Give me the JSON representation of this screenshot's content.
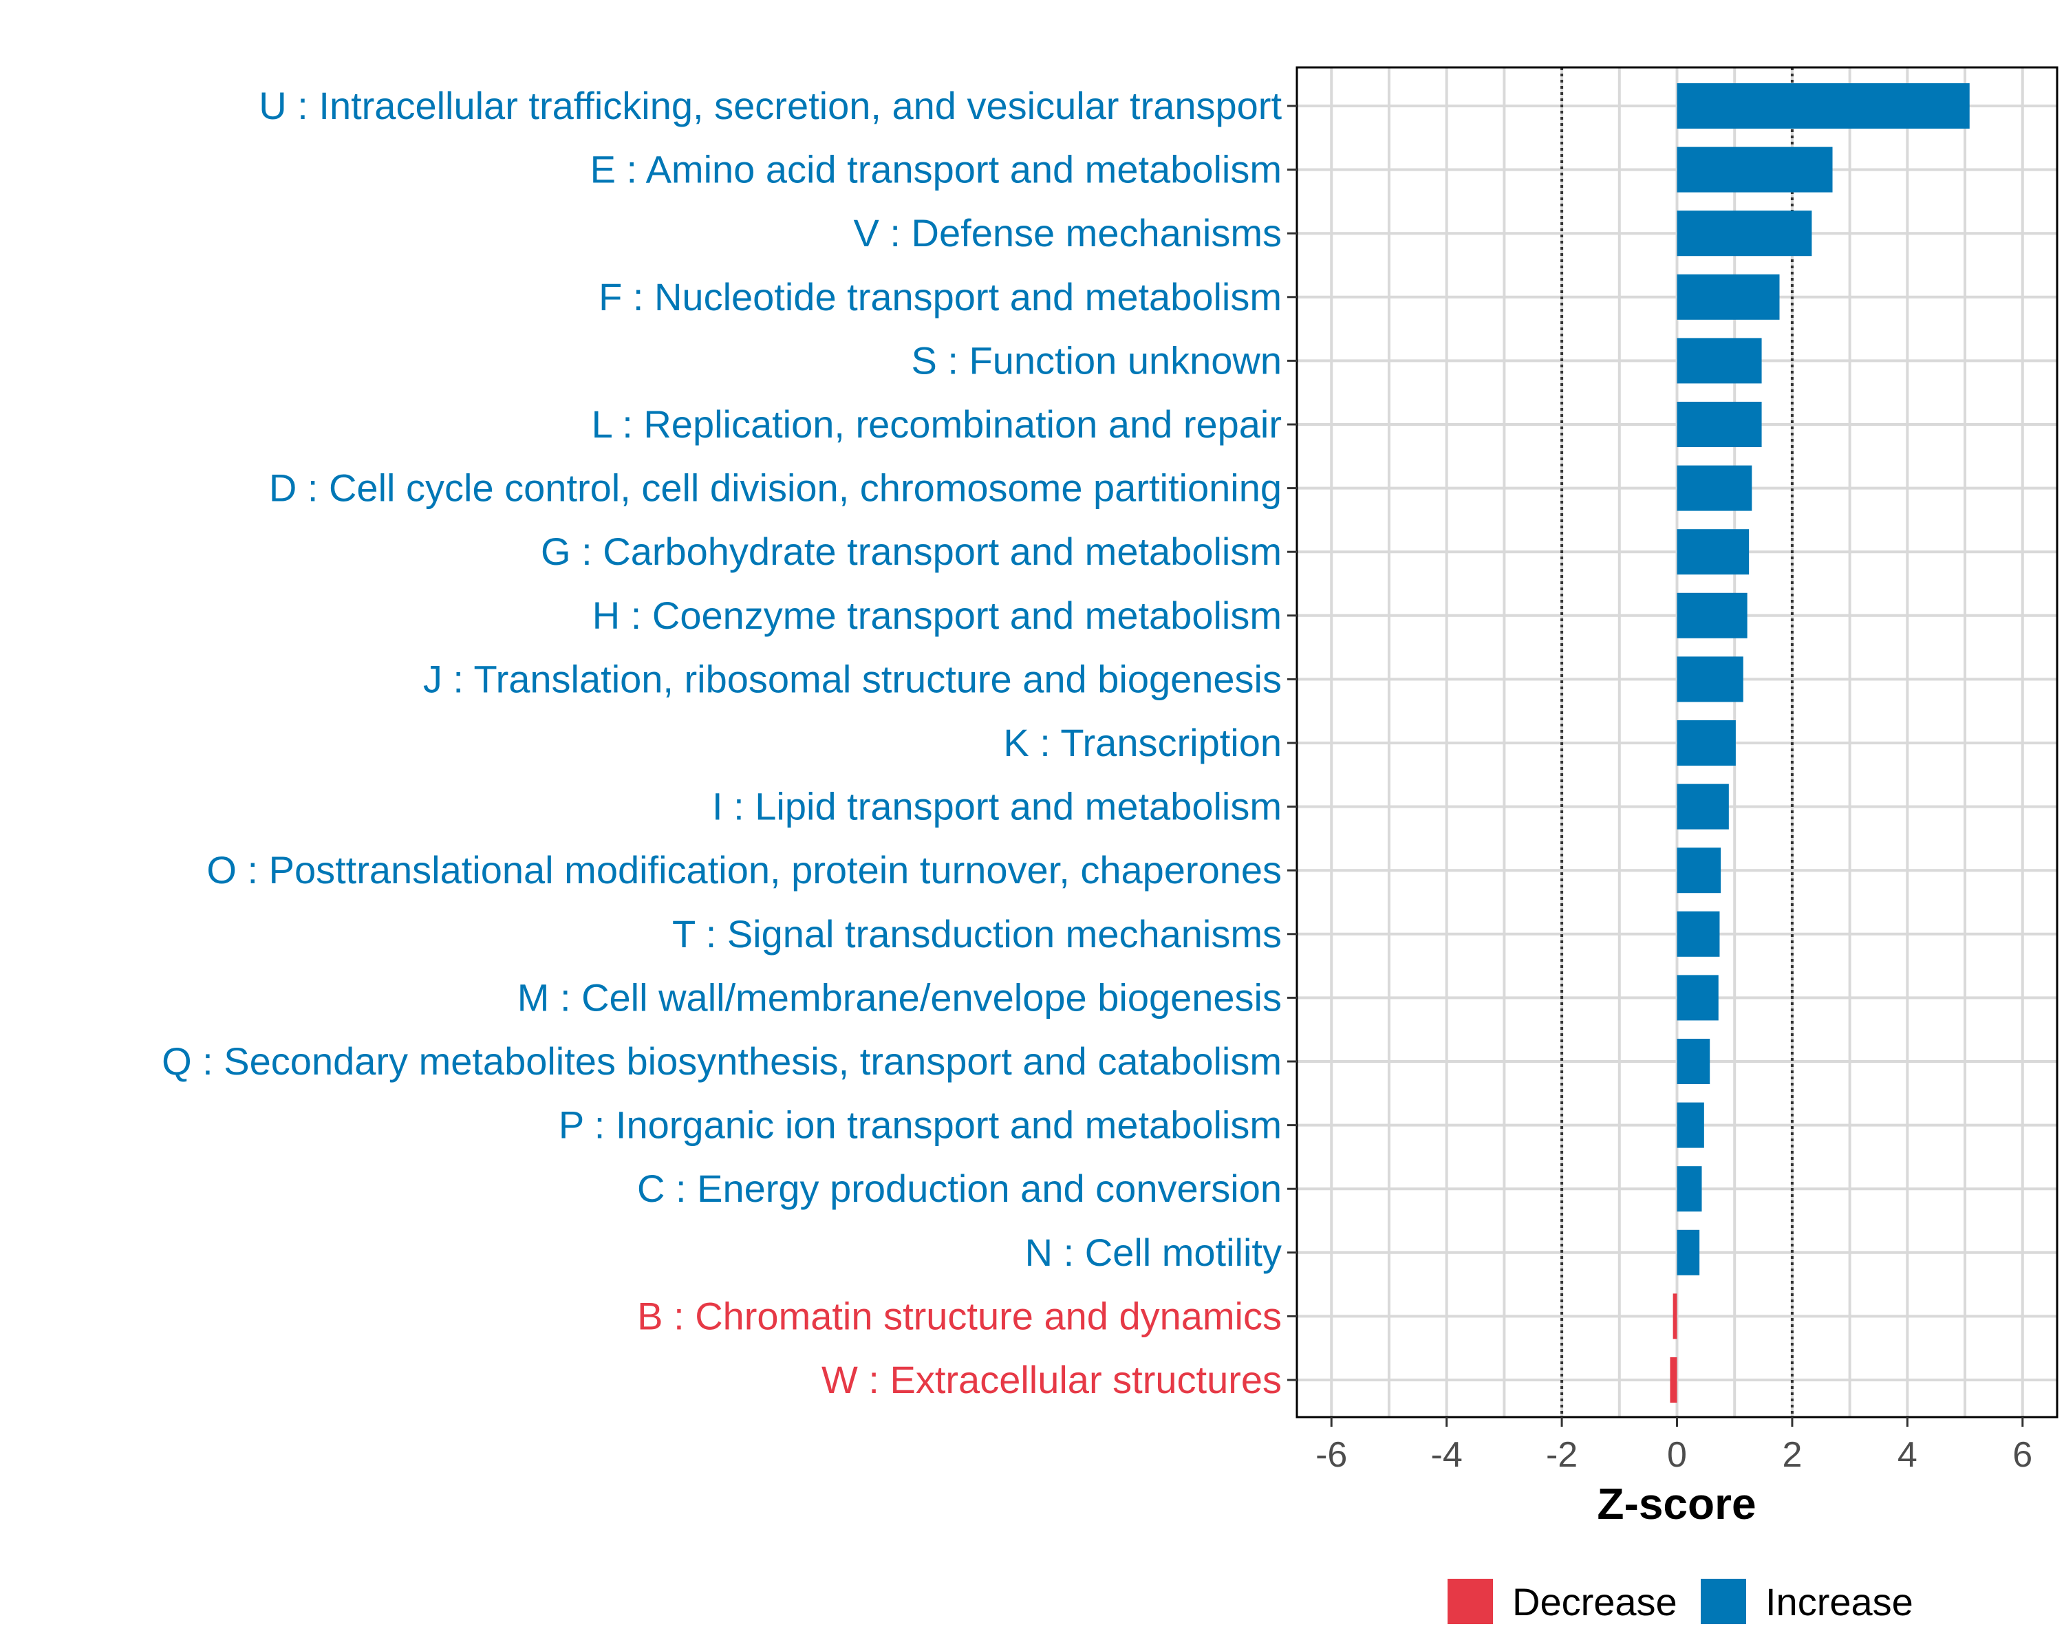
{
  "chart_data": {
    "type": "bar",
    "orientation": "horizontal",
    "title": "",
    "xlabel": "Z-score",
    "ylabel": "",
    "xlim": [
      -6.6,
      6.6
    ],
    "x_ticks": [
      -6,
      -4,
      -2,
      0,
      2,
      4,
      6
    ],
    "x_tick_labels": [
      "-6",
      "-4",
      "-2",
      "0",
      "2",
      "4",
      "6"
    ],
    "reference_lines": [
      -2,
      2
    ],
    "grid": true,
    "legend_position": "bottom",
    "colors": {
      "Decrease": "#e63946",
      "Increase": "#0077b6"
    },
    "legend": [
      {
        "name": "Decrease",
        "color": "#e63946"
      },
      {
        "name": "Increase",
        "color": "#0077b6"
      }
    ],
    "categories": [
      {
        "label": "U : Intracellular trafficking, secretion, and vesicular transport",
        "value": 5.08,
        "group": "Increase"
      },
      {
        "label": "E : Amino acid transport and metabolism",
        "value": 2.7,
        "group": "Increase"
      },
      {
        "label": "V : Defense mechanisms",
        "value": 2.34,
        "group": "Increase"
      },
      {
        "label": "F : Nucleotide transport and metabolism",
        "value": 1.78,
        "group": "Increase"
      },
      {
        "label": "S : Function unknown",
        "value": 1.47,
        "group": "Increase"
      },
      {
        "label": "L : Replication, recombination and repair",
        "value": 1.47,
        "group": "Increase"
      },
      {
        "label": "D : Cell cycle control, cell division, chromosome partitioning",
        "value": 1.3,
        "group": "Increase"
      },
      {
        "label": "G : Carbohydrate transport and metabolism",
        "value": 1.25,
        "group": "Increase"
      },
      {
        "label": "H : Coenzyme transport and metabolism",
        "value": 1.22,
        "group": "Increase"
      },
      {
        "label": "J : Translation, ribosomal structure and biogenesis",
        "value": 1.15,
        "group": "Increase"
      },
      {
        "label": "K : Transcription",
        "value": 1.02,
        "group": "Increase"
      },
      {
        "label": "I : Lipid transport and metabolism",
        "value": 0.9,
        "group": "Increase"
      },
      {
        "label": "O : Posttranslational modification, protein turnover, chaperones",
        "value": 0.76,
        "group": "Increase"
      },
      {
        "label": "T : Signal transduction mechanisms",
        "value": 0.74,
        "group": "Increase"
      },
      {
        "label": "M : Cell wall/membrane/envelope biogenesis",
        "value": 0.72,
        "group": "Increase"
      },
      {
        "label": "Q : Secondary metabolites biosynthesis, transport and catabolism",
        "value": 0.57,
        "group": "Increase"
      },
      {
        "label": "P : Inorganic ion transport and metabolism",
        "value": 0.47,
        "group": "Increase"
      },
      {
        "label": "C : Energy production and conversion",
        "value": 0.43,
        "group": "Increase"
      },
      {
        "label": "N : Cell motility",
        "value": 0.39,
        "group": "Increase"
      },
      {
        "label": "B : Chromatin structure and dynamics",
        "value": -0.07,
        "group": "Decrease"
      },
      {
        "label": "W : Extracellular structures",
        "value": -0.12,
        "group": "Decrease"
      }
    ]
  }
}
